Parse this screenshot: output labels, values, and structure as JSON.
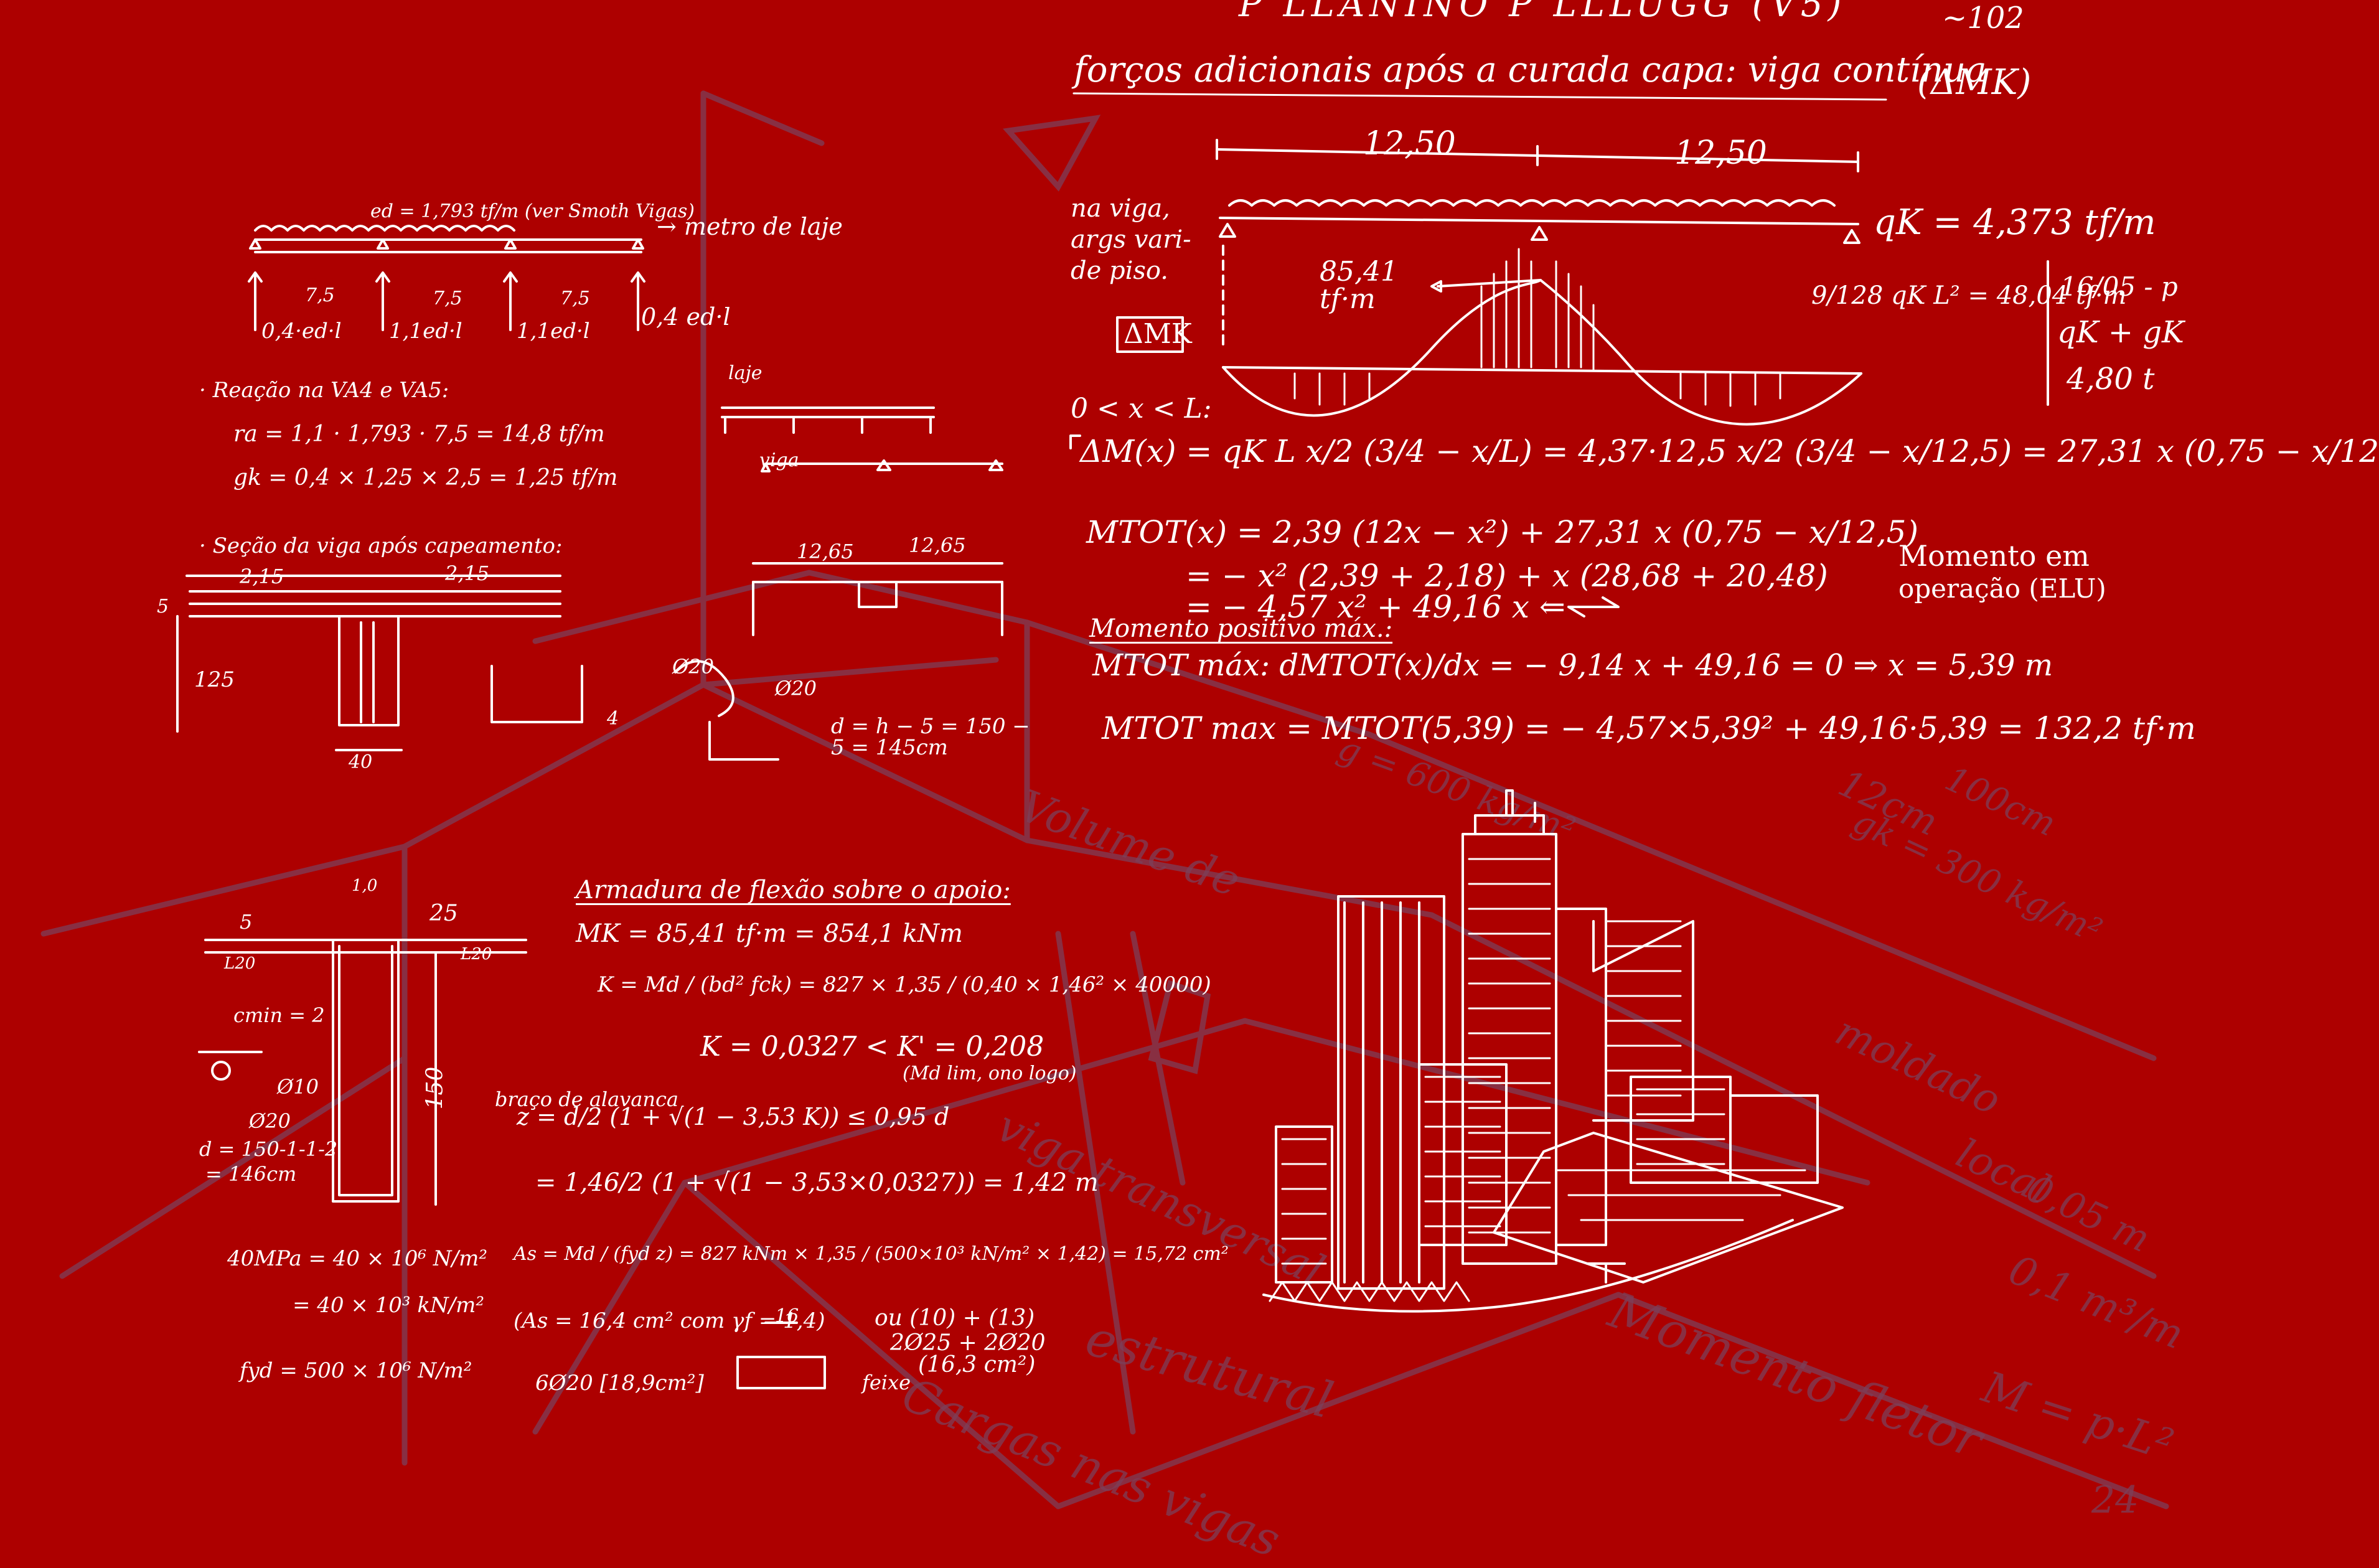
{
  "colors": {
    "background": "#ad0000",
    "chalk": "#ffffff",
    "ghost": "#7c3f59"
  },
  "header": {
    "top_left": "P LLANINO P LLLUGG (V5)",
    "top_right": "~102",
    "title": "forços adicionais após a curada capa: viga contínua",
    "title_note": "(ΔMK)"
  },
  "continuous_beam": {
    "span1": "12,50",
    "span2": "12,50",
    "side_text": [
      "na viga,",
      "args vari-",
      "de piso."
    ],
    "load": "qK = 4,373 tf/m",
    "moment_label": "85,41 tf·m",
    "positive_moment": "9/128 qK L² = 48,04 tf·m",
    "box_note": [
      "16/05 - p",
      "qK + gK",
      "4,80 t"
    ],
    "delta_box": "ΔMK",
    "range": "0 < x < L:",
    "delta_eq": "ΔM(x) = qK L x/2 (3/4 − x/L) = 4,37·12,5 x/2 (3/4 − x/12,5) = 27,31 x (0,75 − x/12",
    "mtot_1": "MTOT(x) = 2,39 (12x − x²) + 27,31 x (0,75 − x/12,5)",
    "mtot_2": "= − x² (2,39 + 2,18) + x (28,68 + 20,48)",
    "mtot_3": "= − 4,57 x² + 49,16 x ⇐",
    "note_line1": "Momento em",
    "note_line2": "operação (ELU)",
    "max_title": "Momento positivo máx.:",
    "max_eq": "MTOT máx: dMTOT(x)/dx = − 9,14 x + 49,16 = 0 ⇒ x = 5,39 m",
    "max_val": "MTOT max = MTOT(5,39) = − 4,57×5,39² + 49,16·5,39 = 132,2 tf·m"
  },
  "slab": {
    "load": "ed = 1,793 tf/m  (ver Smoth Vigas)",
    "strip": "→ metro de laje",
    "spans": [
      "7,5",
      "7,5",
      "7,5"
    ],
    "reactions": [
      "0,4·ed·l",
      "1,1ed·l",
      "1,1ed·l",
      "0,4 ed·l"
    ],
    "reaction_title": "· Reação na VA4 e VA5:",
    "r1": "ra = 1,1 · 1,793 · 7,5 = 14,8 tf/m",
    "r2": "gk = 0,4 × 1,25 × 2,5 = 1,25 tf/m",
    "section_title": "· Seção da viga após capeamento:",
    "dim_215a": "2,15",
    "dim_215b": "2,15",
    "dim_5": "5",
    "dim_125": "125",
    "dim_40": "40",
    "laje": "laje",
    "viga": "viga",
    "dim_1265a": "12,65",
    "dim_1265b": "12,65",
    "phi20a": "Ø20",
    "phi20b": "Ø20",
    "d_eq": "d = h − 5 = 150 − 5 = 145cm",
    "dim_4": "4"
  },
  "reinforcement": {
    "title": "Armadura de flexão sobre o apoio:",
    "mk": "MK = 85,41 tf·m = 854,1 kNm",
    "k_eq": "K = Md / (bd² fck) = 827 × 1,35 / (0,40 × 1,46² × 40000)",
    "k_val": "K = 0,0327  <  K' = 0,208",
    "k_note": "(Md lim, ono logo)",
    "z_title": "braço de alavanca",
    "z_eq": "z = d/2 (1 + √(1 − 3,53 K)) ≤ 0,95 d",
    "z_val": "= 1,46/2 (1 + √(1 − 3,53×0,0327)) = 1,42 m",
    "as_eq": "As = Md / (fyd z) = 827 kNm × 1,35 / (500×10³ kN/m² × 1,42) = 15,72 cm²",
    "as_result": "(As = 16,4 cm²  com γf = 1,4)",
    "bars": "6Ø20 [18,9cm²]",
    "alt": "ou (10) + (13)",
    "alt2": "2Ø25 + 2Ø20",
    "alt3": "(16,3 cm²)",
    "feixe": "feixe",
    "dim16": "16",
    "fck": "40MPa = 40 × 10⁶ N/m²",
    "fck2": "= 40 × 10³ kN/m²",
    "fyd": "fyd = 500 × 10⁶ N/m²",
    "sec_dims": [
      "5",
      "1,0",
      "25",
      "L20",
      "L20"
    ],
    "cmin": "cmin = 2",
    "phi10": "Ø10",
    "phi20": "Ø20",
    "d_calc": "d = 150-1-1-2",
    "d_val": "= 146cm",
    "h150": "150"
  },
  "ghost_text": [
    "Volume de",
    "viga transversal",
    "estrutural",
    "Cargas nas vigas",
    "Momento fletor",
    "moldado",
    "local",
    "0,05 m",
    "0,1 m³/m",
    "12cm",
    "100cm",
    "g = 600 kg/m²",
    "gk = 300 kg/m²",
    "M = p·L²",
    "24"
  ]
}
